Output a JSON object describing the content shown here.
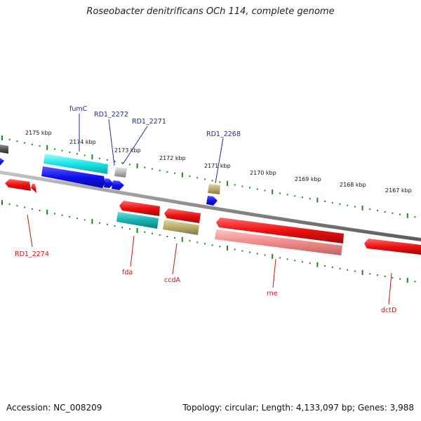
{
  "title": "Roseobacter denitrificans OCh 114, complete genome",
  "accession_text": "Accession: NC_008209",
  "summary_text": "Topology: circular; Length: 4,133,097 bp; Genes: 3,988",
  "colors": {
    "forward_strand": "#1010ee",
    "reverse_strand": "#ee1010",
    "cyan": "#19e6e6",
    "teal": "#16b3b3",
    "olive": "#b8ad6c",
    "salmon": "#f08a8a",
    "grey": "#b5b5b5",
    "dark_grey": "#555555",
    "tick": "#1a8a1a",
    "backbone": "#8c8c8c"
  },
  "kbp_ticks": [
    "2175 kbp",
    "2174 kbp",
    "2173 kbp",
    "2172 kbp",
    "2171 kbp",
    "2170 kbp",
    "2169 kbp",
    "2168 kbp",
    "2167 kbp"
  ],
  "gene_labels_top": [
    "fumC",
    "RD1_2272",
    "RD1_2271",
    "RD1_2268"
  ],
  "gene_labels_bottom": [
    "RD1_2274",
    "fda",
    "ccdA",
    "rne",
    "dctD"
  ]
}
